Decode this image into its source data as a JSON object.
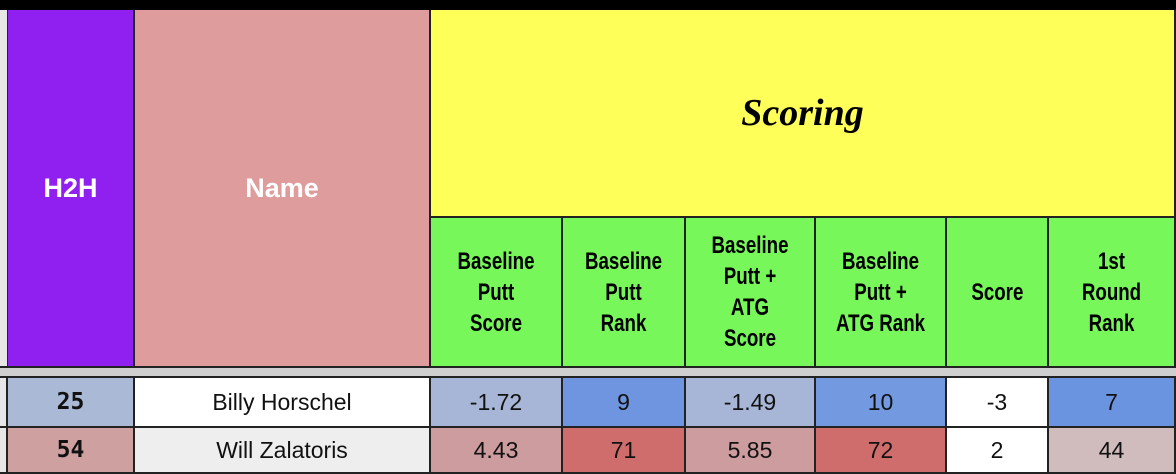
{
  "table": {
    "columns": [
      "H2H",
      "Name"
    ],
    "group": "Scoring",
    "subcolumns": [
      "Baseline Putt Score",
      "Baseline Putt Rank",
      "Baseline Putt + ATG Score",
      "Baseline Putt + ATG Rank",
      "Score",
      "1st Round Rank"
    ],
    "rows": [
      [
        25,
        "Billy Horschel",
        -1.72,
        9,
        -1.49,
        10,
        -3,
        7
      ],
      [
        54,
        "Will Zalatoris",
        4.43,
        71,
        5.85,
        72,
        2,
        44
      ]
    ]
  }
}
